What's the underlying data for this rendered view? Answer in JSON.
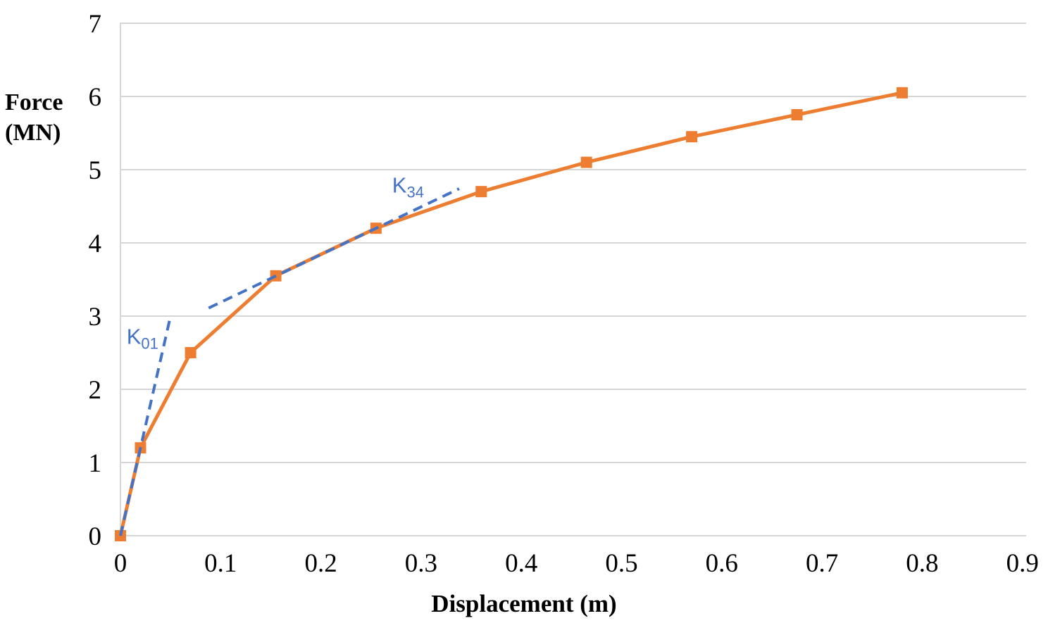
{
  "chart_data": {
    "type": "line",
    "title": "",
    "xlabel": "Displacement (m)",
    "ylabel": "Force (MN)",
    "ylabel_lines": [
      "Force",
      "(MN)"
    ],
    "xlim": [
      0,
      0.9
    ],
    "ylim": [
      0,
      7
    ],
    "grid": "horizontal",
    "legend": "none",
    "colors": {
      "series": "#ED7D31",
      "annotation": "#4472C4",
      "gridline": "#D6D6D6",
      "axis_text": "#000000"
    },
    "x_ticks": [
      {
        "v": 0,
        "label": "0"
      },
      {
        "v": 0.1,
        "label": "0.1"
      },
      {
        "v": 0.2,
        "label": "0.2"
      },
      {
        "v": 0.3,
        "label": "0.3"
      },
      {
        "v": 0.4,
        "label": "0.4"
      },
      {
        "v": 0.5,
        "label": "0.5"
      },
      {
        "v": 0.6,
        "label": "0.6"
      },
      {
        "v": 0.7,
        "label": "0.7"
      },
      {
        "v": 0.8,
        "label": "0.8"
      },
      {
        "v": 0.9,
        "label": "0.9"
      }
    ],
    "y_ticks": [
      {
        "v": 0,
        "label": "0"
      },
      {
        "v": 1,
        "label": "1"
      },
      {
        "v": 2,
        "label": "2"
      },
      {
        "v": 3,
        "label": "3"
      },
      {
        "v": 4,
        "label": "4"
      },
      {
        "v": 5,
        "label": "5"
      },
      {
        "v": 6,
        "label": "6"
      },
      {
        "v": 7,
        "label": "7"
      }
    ],
    "series": [
      {
        "marker": "square",
        "color": "#ED7D31",
        "points": [
          [
            0,
            0
          ],
          [
            0.02,
            1.2
          ],
          [
            0.07,
            2.5
          ],
          [
            0.155,
            3.55
          ],
          [
            0.255,
            4.2
          ],
          [
            0.36,
            4.7
          ],
          [
            0.465,
            5.1
          ],
          [
            0.57,
            5.45
          ],
          [
            0.675,
            5.75
          ],
          [
            0.78,
            6.05
          ]
        ]
      }
    ],
    "annotations": [
      {
        "id": "K01",
        "text_base": "K",
        "text_sub": "01",
        "color": "#4472C4",
        "style": "dashed",
        "line": {
          "x1": 0,
          "y1": 0,
          "x2": 0.05,
          "y2": 3.0
        },
        "label": {
          "x": 0.022,
          "y": 2.69
        }
      },
      {
        "id": "K34",
        "text_base": "K",
        "text_sub": "34",
        "color": "#4472C4",
        "style": "dashed",
        "line": {
          "x1": 0.088,
          "y1": 3.11,
          "x2": 0.338,
          "y2": 4.74
        },
        "label": {
          "x": 0.287,
          "y": 4.76
        }
      }
    ]
  }
}
